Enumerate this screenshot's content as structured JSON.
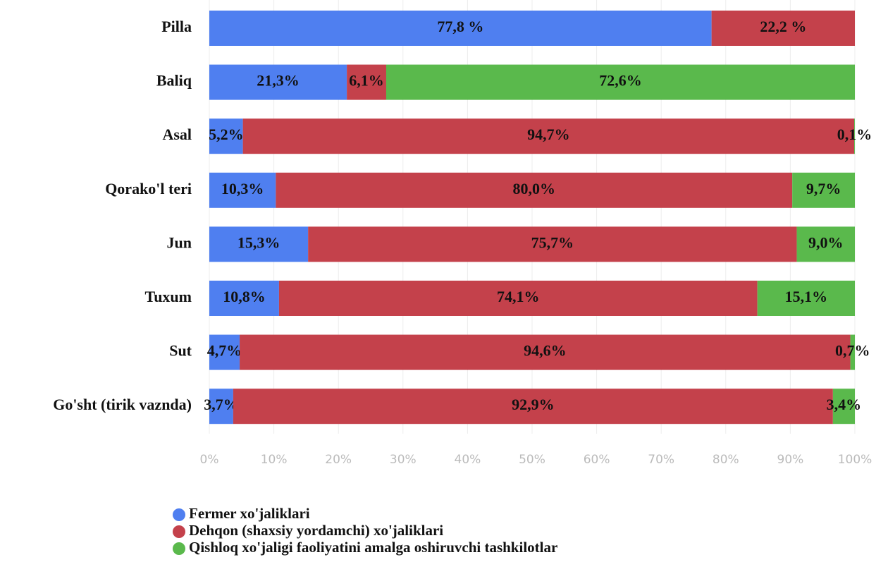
{
  "chart_data": {
    "type": "stacked_barh",
    "categories": [
      "Pilla",
      "Baliq",
      "Asal",
      "Qorako'l teri",
      "Jun",
      "Tuxum",
      "Sut",
      "Go'sht (tirik vaznda)"
    ],
    "series": [
      {
        "name": "Fermer xo'jaliklari",
        "color": "#4f7ff0",
        "values": [
          77.8,
          21.3,
          5.2,
          10.3,
          15.3,
          10.8,
          4.7,
          3.7
        ],
        "value_labels": [
          "77,8 %",
          "21,3%",
          "5,2%",
          "10,3%",
          "15,3%",
          "10,8%",
          "4,7%",
          "3,7%"
        ]
      },
      {
        "name": "Dehqon (shaxsiy yordamchi) xo'jaliklari",
        "color": "#c4414b",
        "values": [
          22.2,
          6.1,
          94.7,
          80.0,
          75.7,
          74.1,
          94.6,
          92.9
        ],
        "value_labels": [
          "22,2 %",
          "6,1%",
          "94,7%",
          "80,0%",
          "75,7%",
          "74,1%",
          "94,6%",
          "92,9%"
        ]
      },
      {
        "name": "Qishloq xo'jaligi faoliyatini amalga oshiruvchi tashkilotlar",
        "color": "#5ab94c",
        "values": [
          null,
          72.6,
          0.1,
          9.7,
          9.0,
          15.1,
          0.7,
          3.4
        ],
        "value_labels": [
          null,
          "72,6%",
          "0,1%",
          "9,7%",
          "9,0%",
          "15,1%",
          "0,7%",
          "3,4%"
        ]
      }
    ],
    "xlim": [
      0,
      100
    ],
    "xticks": [
      {
        "value": 0,
        "label": "0%"
      },
      {
        "value": 10,
        "label": "10%"
      },
      {
        "value": 20,
        "label": "20%"
      },
      {
        "value": 30,
        "label": "30%"
      },
      {
        "value": 40,
        "label": "40%"
      },
      {
        "value": 50,
        "label": "50%"
      },
      {
        "value": 60,
        "label": "60%"
      },
      {
        "value": 70,
        "label": "70%"
      },
      {
        "value": 80,
        "label": "80%"
      },
      {
        "value": 90,
        "label": "90%"
      },
      {
        "value": 100,
        "label": "100%"
      }
    ],
    "grid": true
  }
}
